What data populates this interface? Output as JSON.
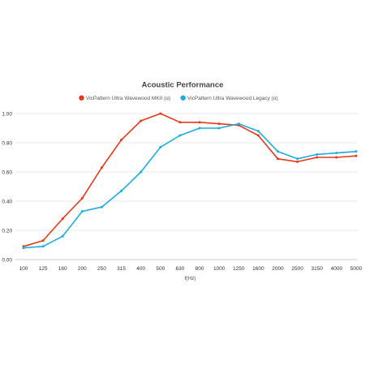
{
  "chart_data": {
    "type": "line",
    "title": "Acoustic Performance",
    "xlabel": "f(Hz)",
    "ylabel": "",
    "ylim": [
      0,
      1.0
    ],
    "yticks": [
      "0.00",
      "0.20",
      "0.40",
      "0.60",
      "0.80",
      "1.00"
    ],
    "grid": true,
    "legend_position": "top",
    "categories": [
      "100",
      "125",
      "160",
      "200",
      "250",
      "315",
      "400",
      "500",
      "630",
      "800",
      "1000",
      "1250",
      "1600",
      "2000",
      "2500",
      "3150",
      "4000",
      "5000"
    ],
    "series": [
      {
        "name": "VicPattern Ultra Wavewood MKII (α)",
        "color": "#e8391b",
        "values": [
          0.09,
          0.13,
          0.28,
          0.42,
          0.63,
          0.82,
          0.95,
          1.0,
          0.94,
          0.94,
          0.93,
          0.92,
          0.85,
          0.69,
          0.67,
          0.7,
          0.7,
          0.71
        ]
      },
      {
        "name": "VicPattern Ultra Wavewood Legacy (α)",
        "color": "#1aaee0",
        "values": [
          0.08,
          0.09,
          0.16,
          0.33,
          0.36,
          0.47,
          0.6,
          0.77,
          0.85,
          0.9,
          0.9,
          0.93,
          0.88,
          0.74,
          0.69,
          0.72,
          0.73,
          0.74
        ]
      }
    ]
  }
}
